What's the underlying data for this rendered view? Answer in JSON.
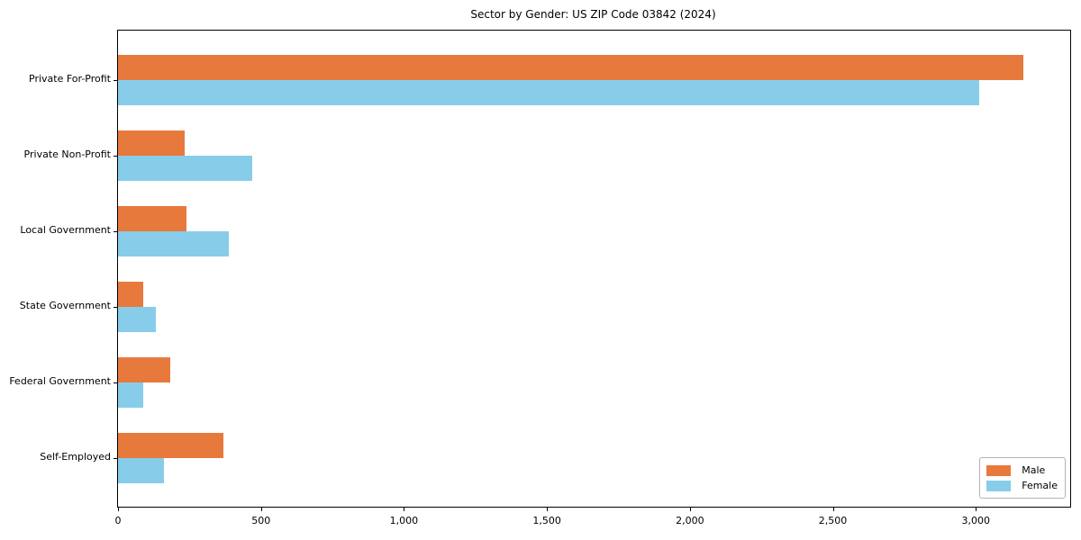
{
  "title": "Sector by Gender: US ZIP Code 03842 (2024)",
  "chart_data": {
    "type": "bar",
    "orientation": "horizontal",
    "title": "Sector by Gender: US ZIP Code 03842 (2024)",
    "xlabel": "",
    "ylabel": "",
    "grid": false,
    "categories": [
      "Private For-Profit",
      "Private Non-Profit",
      "Local Government",
      "State Government",
      "Federal Government",
      "Self-Employed"
    ],
    "series": [
      {
        "name": "Male",
        "color": "#E8793C",
        "values": [
          3165,
          233,
          240,
          88,
          183,
          368
        ]
      },
      {
        "name": "Female",
        "color": "#87CDE9",
        "values": [
          3012,
          468,
          387,
          133,
          87,
          161
        ]
      }
    ],
    "xlim": [
      0,
      3330
    ],
    "xticks": [
      {
        "value": 0,
        "label": "0"
      },
      {
        "value": 500,
        "label": "500"
      },
      {
        "value": 1000,
        "label": "1,000"
      },
      {
        "value": 1500,
        "label": "1,500"
      },
      {
        "value": 2000,
        "label": "2,000"
      },
      {
        "value": 2500,
        "label": "2,500"
      },
      {
        "value": 3000,
        "label": "3,000"
      }
    ],
    "legend": {
      "position": "lower right",
      "entries": [
        "Male",
        "Female"
      ]
    }
  }
}
